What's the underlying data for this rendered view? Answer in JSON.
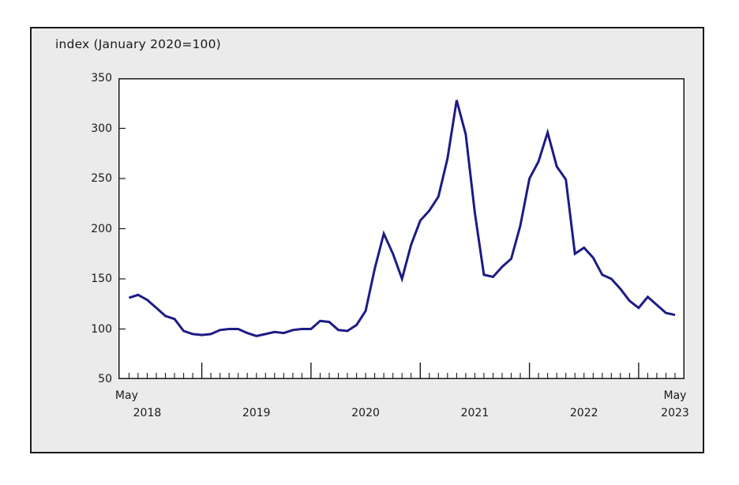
{
  "chart": {
    "title": "index (January 2020=100)",
    "y_axis": {
      "ticks": [
        350,
        300,
        250,
        200,
        150,
        100,
        50
      ]
    },
    "x_axis": {
      "first_point_month": "May",
      "first_point_year": "2018",
      "mid_year_labels": [
        "2018",
        "2019",
        "2020",
        "2021",
        "2022"
      ],
      "last_point_month": "May",
      "last_point_year": "2023"
    },
    "colors": {
      "line": "#1d1b84",
      "panel_background": "#ebebeb",
      "plot_background": "#ffffff",
      "border": "#1a1a1a",
      "text": "#1a1a1a"
    }
  },
  "chart_data": {
    "type": "line",
    "title": "index (January 2020=100)",
    "frequency": "monthly",
    "x_start": "2018-05",
    "x_end": "2023-05",
    "ylim": [
      50,
      350
    ],
    "y_tick_step": 50,
    "grid": false,
    "legend": false,
    "months": [
      "2018-05",
      "2018-06",
      "2018-07",
      "2018-08",
      "2018-09",
      "2018-10",
      "2018-11",
      "2018-12",
      "2019-01",
      "2019-02",
      "2019-03",
      "2019-04",
      "2019-05",
      "2019-06",
      "2019-07",
      "2019-08",
      "2019-09",
      "2019-10",
      "2019-11",
      "2019-12",
      "2020-01",
      "2020-02",
      "2020-03",
      "2020-04",
      "2020-05",
      "2020-06",
      "2020-07",
      "2020-08",
      "2020-09",
      "2020-10",
      "2020-11",
      "2020-12",
      "2021-01",
      "2021-02",
      "2021-03",
      "2021-04",
      "2021-05",
      "2021-06",
      "2021-07",
      "2021-08",
      "2021-09",
      "2021-10",
      "2021-11",
      "2021-12",
      "2022-01",
      "2022-02",
      "2022-03",
      "2022-04",
      "2022-05",
      "2022-06",
      "2022-07",
      "2022-08",
      "2022-09",
      "2022-10",
      "2022-11",
      "2022-12",
      "2023-01",
      "2023-02",
      "2023-03",
      "2023-04",
      "2023-05"
    ],
    "values": [
      131,
      134,
      129,
      121,
      113,
      110,
      98,
      95,
      94,
      95,
      99,
      100,
      100,
      96,
      93,
      95,
      97,
      96,
      99,
      100,
      100,
      108,
      107,
      99,
      98,
      104,
      118,
      160,
      195,
      175,
      150,
      184,
      208,
      218,
      232,
      270,
      328,
      294,
      216,
      154,
      152,
      162,
      170,
      203,
      250,
      267,
      296,
      262,
      249,
      175,
      181,
      171,
      154,
      150,
      140,
      128,
      121,
      132,
      124,
      116,
      114
    ]
  }
}
